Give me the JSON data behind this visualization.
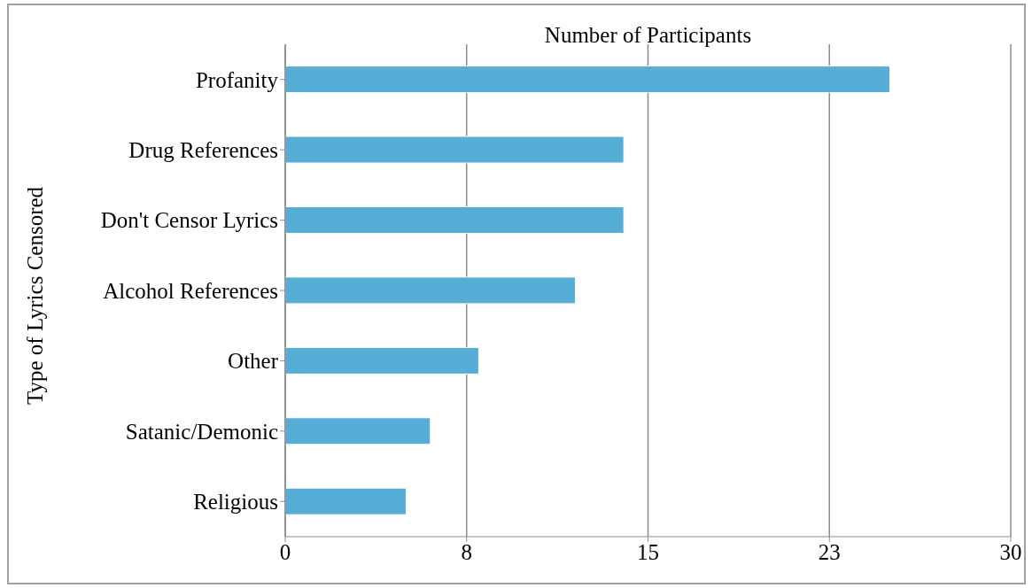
{
  "chart_data": {
    "type": "bar",
    "orientation": "horizontal",
    "xlabel": "Number of Participants",
    "ylabel": "Type of Lyrics Censored",
    "categories": [
      "Profanity",
      "Drug References",
      "Don't Censor Lyrics",
      "Alcohol References",
      "Other",
      "Satanic/Demonic",
      "Religious"
    ],
    "values": [
      25,
      14,
      14,
      12,
      8,
      6,
      5
    ],
    "color": "#56aed6",
    "xlim": [
      0,
      30
    ],
    "xticks": [
      0,
      {
        "value": 7.5,
        "label": "8"
      },
      15,
      {
        "value": 22.5,
        "label": "23"
      },
      30
    ],
    "grid": "x"
  }
}
